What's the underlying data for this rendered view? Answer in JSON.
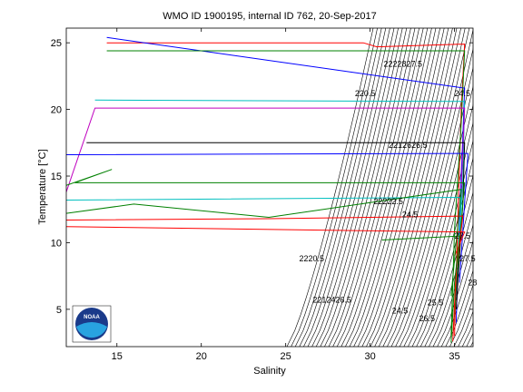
{
  "chart_data": {
    "type": "line",
    "title": "WMO ID 1900195, internal ID 762, 20-Sep-2017",
    "x_label": "Salinity",
    "y_label": "Temperature [°C]",
    "logo_text": "NOAA",
    "xlim": [
      12,
      36.1
    ],
    "ylim": [
      2.2,
      26.1
    ],
    "xticks": [
      15,
      20,
      25,
      30,
      35
    ],
    "yticks": [
      5,
      10,
      15,
      20,
      25
    ],
    "series": [
      {
        "color": "#ff0000",
        "x": [
          14.4,
          29.6,
          30.4,
          35.6,
          35.4,
          35.2,
          35.0
        ],
        "values": [
          25.0,
          25.0,
          24.7,
          24.9,
          20,
          12,
          3
        ]
      },
      {
        "color": "#0000ff",
        "x": [
          14.4,
          35.6,
          35.5,
          35.3,
          35.1
        ],
        "values": [
          25.4,
          21.6,
          18,
          12,
          4
        ]
      },
      {
        "color": "#008000",
        "x": [
          14.4,
          35.6,
          35.4,
          35.0,
          34.8
        ],
        "values": [
          24.4,
          24.4,
          19,
          11,
          3
        ]
      },
      {
        "color": "#00bfbf",
        "x": [
          13.7,
          35.6,
          35.5,
          35.2
        ],
        "values": [
          20.7,
          20.6,
          15,
          8
        ]
      },
      {
        "color": "#bf00bf",
        "x": [
          12.0,
          13.7,
          35.6,
          35.4,
          35.1
        ],
        "values": [
          13.8,
          20.1,
          20.1,
          14,
          6
        ]
      },
      {
        "color": "#000000",
        "x": [
          13.2,
          35.6,
          35.5,
          35.1
        ],
        "values": [
          17.5,
          17.5,
          13,
          5
        ]
      },
      {
        "color": "#0000ff",
        "x": [
          12.0,
          35.8,
          35.6,
          35.3
        ],
        "values": [
          16.6,
          16.7,
          13,
          7
        ]
      },
      {
        "color": "#008000",
        "x": [
          12.0,
          14.7,
          12.5,
          35.6,
          35.3,
          34.9
        ],
        "values": [
          14.3,
          15.5,
          14.5,
          14.5,
          10,
          3
        ]
      },
      {
        "color": "#00bfbf",
        "x": [
          12.0,
          35.4,
          35.2
        ],
        "values": [
          13.2,
          13.4,
          9
        ]
      },
      {
        "color": "#ff0000",
        "x": [
          12.0,
          24.0,
          35.5,
          35.1,
          34.9
        ],
        "values": [
          11.7,
          11.8,
          12,
          8,
          2.6
        ]
      },
      {
        "color": "#ff0000",
        "x": [
          12.0,
          35.6,
          35.0
        ],
        "values": [
          11.2,
          10.8,
          9
        ]
      },
      {
        "color": "#008000",
        "x": [
          12.0,
          16.0,
          24.0,
          35.4,
          34.8
        ],
        "values": [
          12.2,
          12.9,
          11.9,
          14,
          6
        ]
      },
      {
        "color": "#008000",
        "x": [
          30.7,
          35.3,
          35.0,
          34.8
        ],
        "values": [
          10.2,
          10.5,
          7,
          2.5
        ]
      }
    ],
    "annotations": [
      {
        "text": "2222827.5",
        "x": 30.8,
        "y": 23.4
      },
      {
        "text": "220.5",
        "x": 29.1,
        "y": 21.2
      },
      {
        "text": "2212626.5",
        "x": 31.1,
        "y": 17.3
      },
      {
        "text": "22222.5",
        "x": 30.2,
        "y": 13.1
      },
      {
        "text": "24.5",
        "x": 31.9,
        "y": 12.1
      },
      {
        "text": "2220.5",
        "x": 25.8,
        "y": 8.8
      },
      {
        "text": "2212426.5",
        "x": 26.6,
        "y": 5.7
      },
      {
        "text": "24.5",
        "x": 31.3,
        "y": 4.9
      },
      {
        "text": "25.5",
        "x": 33.4,
        "y": 5.5
      },
      {
        "text": "26.5",
        "x": 32.9,
        "y": 4.3
      },
      {
        "text": "27.5",
        "x": 35.0,
        "y": 10.5
      },
      {
        "text": "28",
        "x": 35.8,
        "y": 7.0
      },
      {
        "text": "24.5",
        "x": 35.0,
        "y": 21.2
      },
      {
        "text": "27.5",
        "x": 35.3,
        "y": 8.8
      }
    ]
  }
}
